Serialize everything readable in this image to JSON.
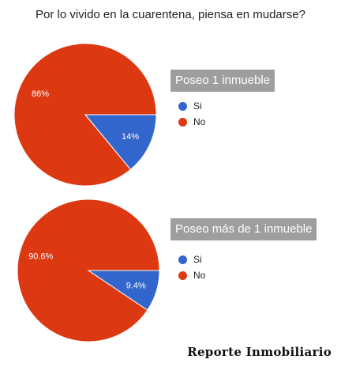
{
  "title": "Por lo vivido en la cuarentena, piensa en mudarse?",
  "watermark": "Reporte Inmobiliario",
  "chart_data": [
    {
      "type": "pie",
      "title": "Poseo 1 inmueble",
      "categories": [
        "Si",
        "No"
      ],
      "values": [
        14,
        86
      ],
      "labels": [
        "14%",
        "86%"
      ],
      "colors": [
        "#3366cc",
        "#dc3912"
      ],
      "legend": "right"
    },
    {
      "type": "pie",
      "title": "Poseo más de 1 inmueble",
      "categories": [
        "Si",
        "No"
      ],
      "values": [
        9.4,
        90.6
      ],
      "labels": [
        "9.4%",
        "90.6%"
      ],
      "colors": [
        "#3366cc",
        "#dc3912"
      ],
      "legend": "right"
    }
  ]
}
